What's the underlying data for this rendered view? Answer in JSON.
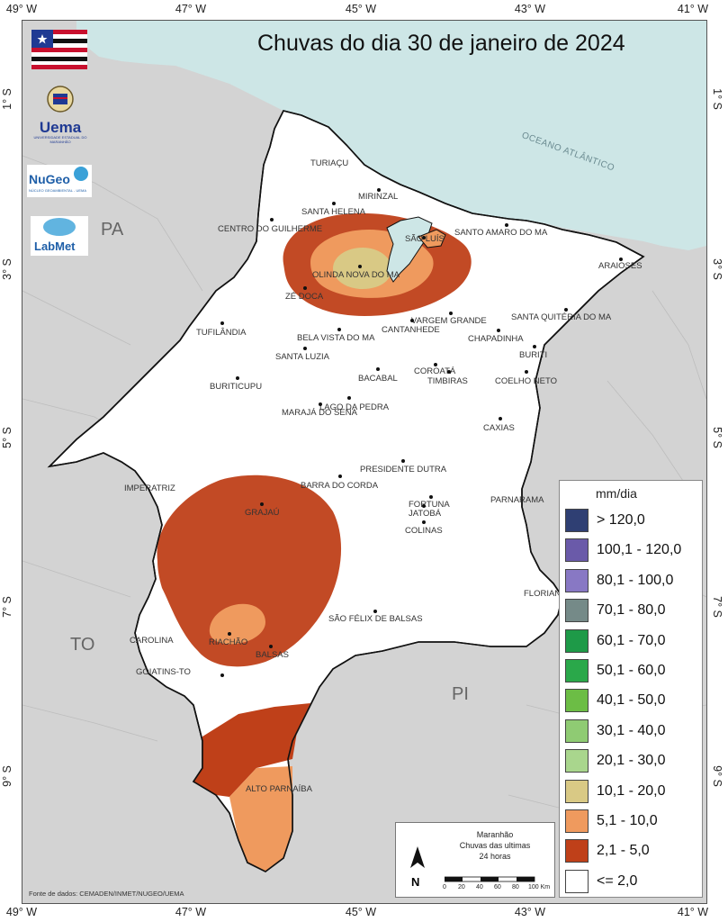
{
  "title": "Chuvas do dia 30 de janeiro de 2024",
  "axes": {
    "longitude_ticks": [
      "49° W",
      "47° W",
      "45° W",
      "43° W",
      "41° W"
    ],
    "latitude_ticks": [
      "1° S",
      "3° S",
      "5° S",
      "7° S",
      "9° S"
    ]
  },
  "states": [
    "PA",
    "TO",
    "PI"
  ],
  "ocean_label": "OCEANO ATLÂNTICO",
  "cities": [
    {
      "name": "TURIAÇU"
    },
    {
      "name": "MIRINZAL"
    },
    {
      "name": "SANTA HELENA"
    },
    {
      "name": "CENTRO DO GUILHERME"
    },
    {
      "name": "SÃO LUÍS"
    },
    {
      "name": "SANTO AMARO DO MA"
    },
    {
      "name": "ARAIOSES"
    },
    {
      "name": "OLINDA NOVA DO MA"
    },
    {
      "name": "ZÉ DOCA"
    },
    {
      "name": "VARGEM GRANDE"
    },
    {
      "name": "SANTA QUITÉRIA DO MA"
    },
    {
      "name": "CANTANHEDE"
    },
    {
      "name": "TUFILÂNDIA"
    },
    {
      "name": "BELA VISTA DO MA"
    },
    {
      "name": "CHAPADINHA"
    },
    {
      "name": "BURITI"
    },
    {
      "name": "SANTA LUZIA"
    },
    {
      "name": "COROATÁ"
    },
    {
      "name": "BACABAL"
    },
    {
      "name": "TIMBIRAS"
    },
    {
      "name": "COELHO NETO"
    },
    {
      "name": "BURITICUPU"
    },
    {
      "name": "LAGO DA PEDRA"
    },
    {
      "name": "MARAJÁ DO SENA"
    },
    {
      "name": "CAXIAS"
    },
    {
      "name": "PRESIDENTE DUTRA"
    },
    {
      "name": "BARRA DO CORDA"
    },
    {
      "name": "IMPERATRIZ"
    },
    {
      "name": "FORTUNA"
    },
    {
      "name": "JATOBÁ"
    },
    {
      "name": "PARNARAMA"
    },
    {
      "name": "GRAJAÚ"
    },
    {
      "name": "COLINAS"
    },
    {
      "name": "FLORIANO-PI"
    },
    {
      "name": "SÃO FÉLIX DE BALSAS"
    },
    {
      "name": "CAROLINA"
    },
    {
      "name": "RIACHÃO"
    },
    {
      "name": "BALSAS"
    },
    {
      "name": "GOIATINS-TO"
    },
    {
      "name": "ALTO PARNAÍBA"
    }
  ],
  "legend": {
    "title": "mm/dia",
    "items": [
      {
        "label": "> 120,0",
        "color": "#2f3f73"
      },
      {
        "label": "100,1 - 120,0",
        "color": "#6a5aa9"
      },
      {
        "label": "80,1 - 100,0",
        "color": "#8878c4"
      },
      {
        "label": "70,1 - 80,0",
        "color": "#758a88"
      },
      {
        "label": "60,1 - 70,0",
        "color": "#1e9a48"
      },
      {
        "label": "50,1 - 60,0",
        "color": "#2aa84a"
      },
      {
        "label": "40,1 - 50,0",
        "color": "#6cbd45"
      },
      {
        "label": "30,1 - 40,0",
        "color": "#8fcb73"
      },
      {
        "label": "20,1 - 30,0",
        "color": "#a9d68d"
      },
      {
        "label": "10,1 - 20,0",
        "color": "#d9c985"
      },
      {
        "label": "5,1 - 10,0",
        "color": "#ef9a5e"
      },
      {
        "label": "2,1 - 5,0",
        "color": "#bf4019"
      },
      {
        "label": "<= 2,0",
        "color": "#ffffff"
      }
    ]
  },
  "info_box": {
    "line1": "Maranhão",
    "line2": "Chuvas das ultimas",
    "line3": "24 horas",
    "north": "N",
    "scale_ticks": [
      "0",
      "20",
      "40",
      "60",
      "80",
      "100 Km"
    ]
  },
  "source": "Fonte de dados: CEMADEN/INMET/NUGEO/UEMA",
  "logos": {
    "uema": "Uema",
    "uema_sub": "UNIVERSIDADE ESTADUAL DO MARANHÃO",
    "nugeo": "NuGeo",
    "nugeo_sub": "NÚCLEO GEOAMBIENTAL - UEMA",
    "labmet": "LabMet"
  },
  "colors": {
    "ocean": "#cde6e6",
    "land_other": "#d3d3d3",
    "maranhao": "#ffffff",
    "rain_2_5": "#bf4019",
    "rain_5_10": "#ef9a5e",
    "rain_10_20": "#d9c985"
  }
}
